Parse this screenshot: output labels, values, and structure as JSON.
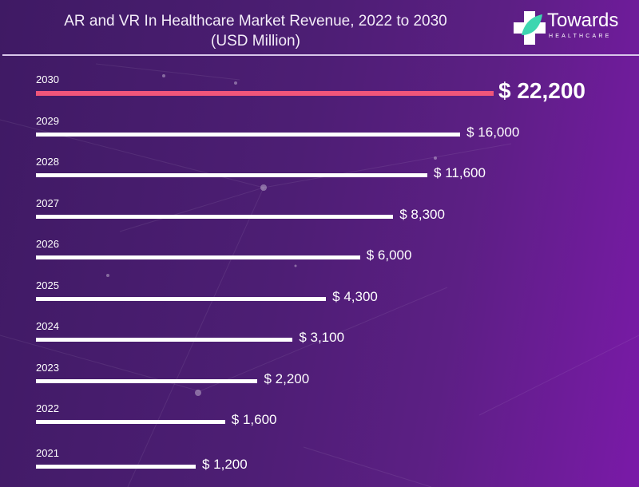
{
  "header": {
    "title_line1": "AR and VR In Healthcare Market Revenue, 2022 to 2030",
    "title_line2": "(USD Million)"
  },
  "logo": {
    "brand": "Towards",
    "sub": "HEALTHCARE"
  },
  "colors": {
    "highlight": "#f0557a",
    "bar": "#ffffff",
    "logo_leaf": "#3dd6b0"
  },
  "chart_data": {
    "type": "bar",
    "orientation": "horizontal",
    "title": "AR and VR In Healthcare Market Revenue, 2022 to 2030 (USD Million)",
    "xlabel": "",
    "ylabel": "",
    "categories": [
      "2030",
      "2029",
      "2028",
      "2027",
      "2026",
      "2025",
      "2024",
      "2023",
      "2022",
      "2021"
    ],
    "values": [
      22200,
      16000,
      11600,
      8300,
      6000,
      4300,
      3100,
      2200,
      1600,
      1200
    ],
    "labels": [
      "$ 22,200",
      "$ 16,000",
      "$ 11,600",
      "$ 8,300",
      "$ 6,000",
      "$ 4,300",
      "$ 3,100",
      "$ 2,200",
      "$ 1,600",
      "$ 1,200"
    ],
    "highlight_index": 0,
    "grid": false,
    "legend": "none"
  }
}
